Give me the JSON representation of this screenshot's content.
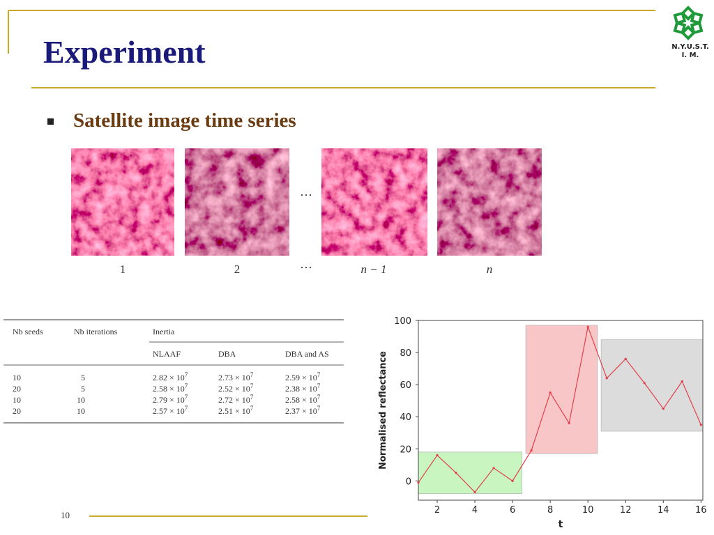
{
  "header": {
    "title": "Experiment",
    "logo_lines": [
      "N.Y.U.S.T.",
      "I. M."
    ]
  },
  "bullet": "Satellite image time series",
  "images": {
    "labels": [
      "1",
      "2",
      "n − 1",
      "n"
    ],
    "ellipsis": "···"
  },
  "table": {
    "headers": [
      "Nb seeds",
      "Nb iterations",
      "Inertia"
    ],
    "subheaders": [
      "NLAAF",
      "DBA",
      "DBA and AS"
    ],
    "rows": [
      [
        "10",
        "5",
        {
          "text": "2.82 × 10",
          "sup": "7"
        },
        {
          "text": "2.73 × 10",
          "sup": "7"
        },
        {
          "text": "2.59 × 10",
          "sup": "7"
        }
      ],
      [
        "20",
        "5",
        {
          "text": "2.58 × 10",
          "sup": "7"
        },
        {
          "text": "2.52 × 10",
          "sup": "7"
        },
        {
          "text": "2.38 × 10",
          "sup": "7"
        }
      ],
      [
        "10",
        "10",
        {
          "text": "2.79 × 10",
          "sup": "7"
        },
        {
          "text": "2.72 × 10",
          "sup": "7"
        },
        {
          "text": "2.58 × 10",
          "sup": "7"
        }
      ],
      [
        "20",
        "10",
        {
          "text": "2.57 × 10",
          "sup": "7"
        },
        {
          "text": "2.51 × 10",
          "sup": "7"
        },
        {
          "text": "2.37 × 10",
          "sup": "7"
        }
      ]
    ]
  },
  "chart_data": {
    "type": "line",
    "x": [
      1,
      2,
      3,
      4,
      5,
      6,
      7,
      8,
      9,
      10,
      11,
      12,
      13,
      14,
      15,
      16
    ],
    "values": [
      -1,
      16,
      5,
      -7,
      8,
      0,
      19,
      55,
      36,
      96,
      64,
      76,
      61,
      45,
      62,
      35
    ],
    "color": "#e0404a",
    "xlabel": "t",
    "ylabel": "Normalised reflectance",
    "xlim": [
      1,
      16.1
    ],
    "ylim": [
      -12,
      100
    ],
    "xticks": [
      2,
      4,
      6,
      8,
      10,
      12,
      14,
      16
    ],
    "yticks": [
      0,
      20,
      40,
      60,
      80,
      100
    ],
    "regions": [
      {
        "x": [
          1,
          6.5
        ],
        "y": [
          -8,
          18
        ],
        "color": "#c8f5c0"
      },
      {
        "x": [
          6.7,
          10.5
        ],
        "y": [
          17,
          97
        ],
        "color": "#f9c6c8"
      },
      {
        "x": [
          10.7,
          16.1
        ],
        "y": [
          31,
          88
        ],
        "color": "#dcdcdc"
      }
    ]
  },
  "footer": {
    "page": "10"
  }
}
